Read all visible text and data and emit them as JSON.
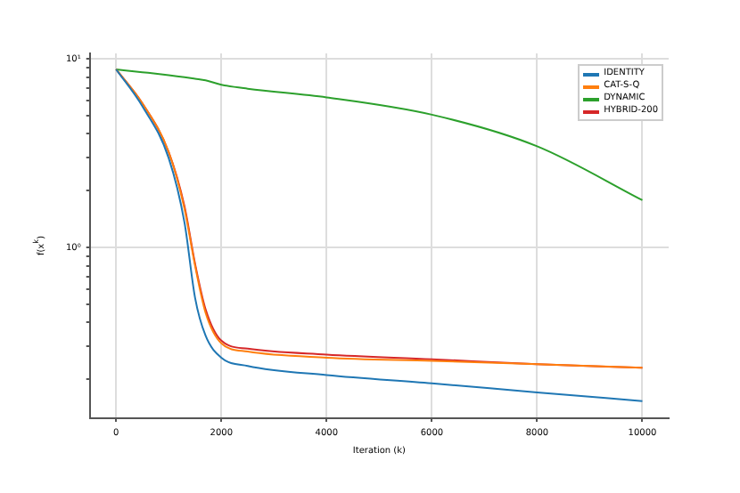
{
  "chart_data": {
    "type": "line",
    "xlabel": "Iteration (k)",
    "ylabel": "f(x$^{k}$)",
    "log": "y",
    "grid": true,
    "legend": "top right",
    "xlim": [
      -500,
      10500
    ],
    "xticks": [
      0,
      2000,
      4000,
      6000,
      8000,
      10000
    ],
    "ylim": [
      0.124,
      10.7
    ],
    "yticks": [
      {
        "value": 0.2,
        "label": null
      },
      {
        "value": 0.3,
        "label": null
      },
      {
        "value": 0.4,
        "label": null
      },
      {
        "value": 0.5,
        "label": null
      },
      {
        "value": 0.6,
        "label": null
      },
      {
        "value": 0.7,
        "label": null
      },
      {
        "value": 0.8,
        "label": null
      },
      {
        "value": 0.9,
        "label": null
      },
      {
        "value": 1,
        "label": "10⁰"
      },
      {
        "value": 2,
        "label": null
      },
      {
        "value": 3,
        "label": null
      },
      {
        "value": 4,
        "label": null
      },
      {
        "value": 5,
        "label": null
      },
      {
        "value": 6,
        "label": null
      },
      {
        "value": 7,
        "label": null
      },
      {
        "value": 8,
        "label": null
      },
      {
        "value": 9,
        "label": null
      },
      {
        "value": 10,
        "label": "10¹"
      }
    ],
    "x": [
      0,
      500,
      1000,
      1300,
      1500,
      1700,
      2000,
      2500,
      4000,
      6000,
      8000,
      10000
    ],
    "series": [
      {
        "name": "IDENTITY",
        "color": "#1f77b4",
        "values": [
          8.8,
          5.6,
          2.97,
          1.35,
          0.54,
          0.34,
          0.26,
          0.235,
          0.21,
          0.19,
          0.17,
          0.153
        ]
      },
      {
        "name": "CAT-S-Q",
        "color": "#ff7f0e",
        "values": [
          8.8,
          5.8,
          3.2,
          1.6,
          0.8,
          0.45,
          0.31,
          0.28,
          0.26,
          0.25,
          0.24,
          0.23
        ]
      },
      {
        "name": "DYNAMIC",
        "color": "#2ca02c",
        "values": [
          8.8,
          8.5,
          8.2,
          8.0,
          7.85,
          7.7,
          7.3,
          6.95,
          6.25,
          5.06,
          3.44,
          1.78
        ]
      },
      {
        "name": "HYBRID-200",
        "color": "#d62728",
        "values": [
          8.8,
          5.8,
          3.2,
          1.65,
          0.82,
          0.47,
          0.32,
          0.29,
          0.27,
          0.255,
          0.24,
          0.23
        ]
      }
    ]
  }
}
